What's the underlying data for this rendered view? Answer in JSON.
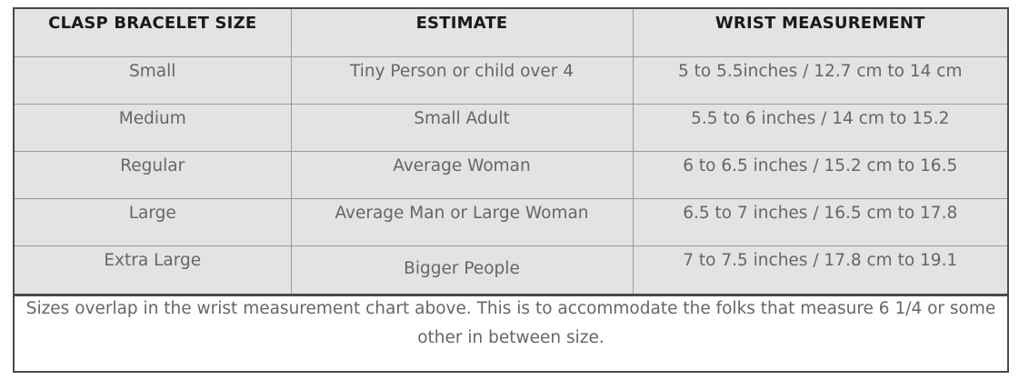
{
  "table": {
    "headers": [
      "CLASP BRACELET SIZE",
      "ESTIMATE",
      "WRIST MEASUREMENT"
    ],
    "rows": [
      [
        "Small",
        "Tiny Person or child over 4",
        "5 to 5.5inches / 12.7 cm to 14 cm"
      ],
      [
        "Medium",
        "Small Adult",
        "5.5 to 6 inches / 14 cm to 15.2"
      ],
      [
        "Regular",
        "Average Woman",
        "6 to 6.5 inches / 15.2 cm to 16.5"
      ],
      [
        "Large",
        "Average Man or Large Woman",
        "6.5 to 7 inches / 16.5 cm to 17.8"
      ],
      [
        "Extra Large",
        "Bigger People",
        "7 to 7.5 inches / 17.8 cm to 19.1"
      ]
    ]
  },
  "note": "Sizes overlap in the wrist measurement chart above. This is to accommodate the folks that measure 6 1/4 or some other in between size.",
  "colors": {
    "table_background": "#e3e3e3",
    "border": "#4a4a4a",
    "cell_text": "#666666",
    "header_text": "#1a1a1a"
  }
}
